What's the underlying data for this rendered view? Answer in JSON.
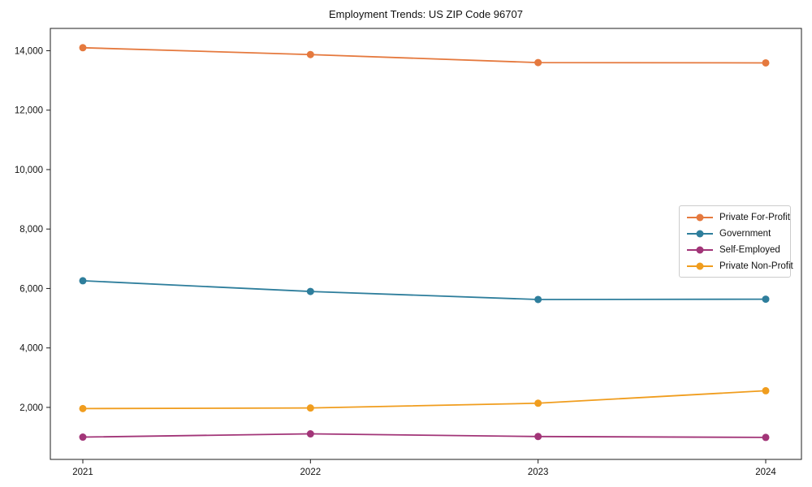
{
  "chart_data": {
    "type": "line",
    "title": "Employment Trends: US ZIP Code 96707",
    "x": [
      2021,
      2022,
      2023,
      2024
    ],
    "x_tick_labels": [
      "2021",
      "2022",
      "2023",
      "2024"
    ],
    "y_ticks": [
      2000,
      4000,
      6000,
      8000,
      10000,
      12000,
      14000
    ],
    "y_tick_labels": [
      "2,000",
      "4,000",
      "6,000",
      "8,000",
      "10,000",
      "12,000",
      "14,000"
    ],
    "ylim": [
      250,
      14750
    ],
    "grid": false,
    "legend_position": "center-right",
    "series": [
      {
        "name": "Private For-Profit",
        "color": "#e5793e",
        "values": [
          14100,
          13870,
          13600,
          13590
        ]
      },
      {
        "name": "Government",
        "color": "#2e7e9c",
        "values": [
          6260,
          5900,
          5630,
          5640
        ]
      },
      {
        "name": "Self-Employed",
        "color": "#a23578",
        "values": [
          1000,
          1110,
          1020,
          990
        ]
      },
      {
        "name": "Private Non-Profit",
        "color": "#f09d1e",
        "values": [
          1960,
          1980,
          2140,
          2560
        ]
      }
    ],
    "axis_color": "#1c1c1c",
    "background_color": "#ffffff"
  }
}
